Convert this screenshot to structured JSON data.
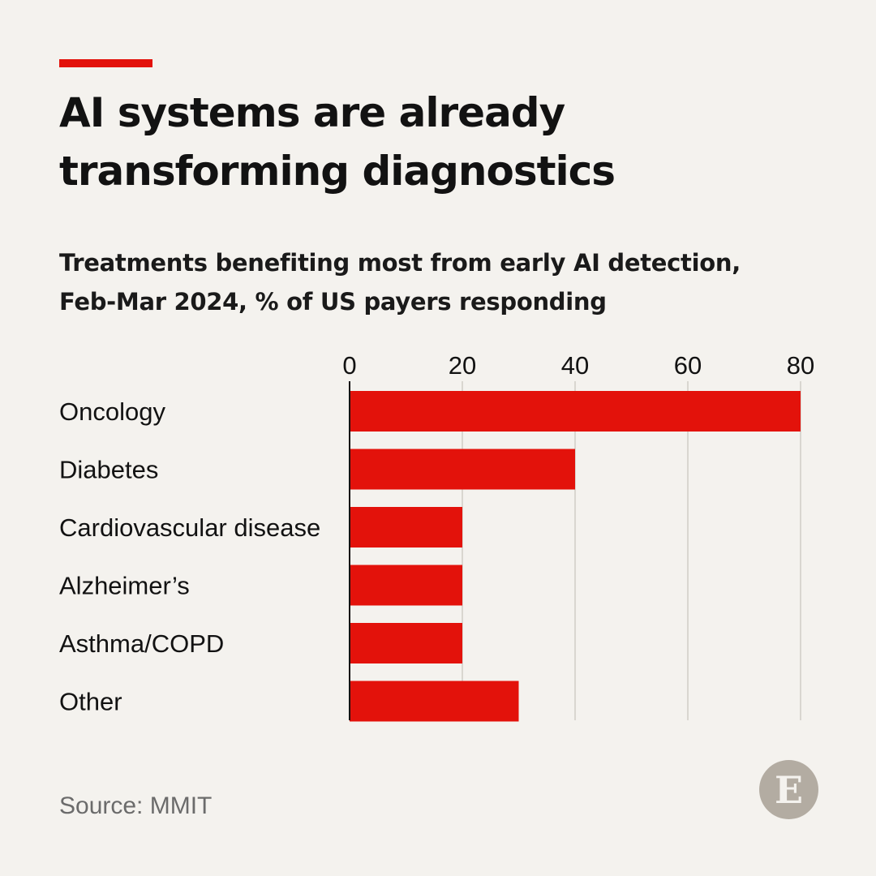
{
  "title": "AI systems are already transforming diagnostics",
  "title_lines": [
    "AI systems are already",
    "transforming diagnostics"
  ],
  "subtitle_lines": [
    "Treatments benefiting most from early AI detection,",
    "Feb-Mar 2024, % of US payers responding"
  ],
  "source": "Source: MMIT",
  "logo_letter": "E",
  "colors": {
    "accent": "#e3120b",
    "bar": "#e3120b",
    "background": "#f4f2ee",
    "gridline": "#d9d6d0"
  },
  "chart_data": {
    "type": "bar",
    "orientation": "horizontal",
    "categories": [
      "Oncology",
      "Diabetes",
      "Cardiovascular disease",
      "Alzheimer’s",
      "Asthma/COPD",
      "Other"
    ],
    "values": [
      80,
      40,
      20,
      20,
      20,
      30
    ],
    "xticks": [
      0,
      20,
      40,
      60,
      80
    ],
    "xlim": [
      0,
      80
    ],
    "grid": true
  }
}
